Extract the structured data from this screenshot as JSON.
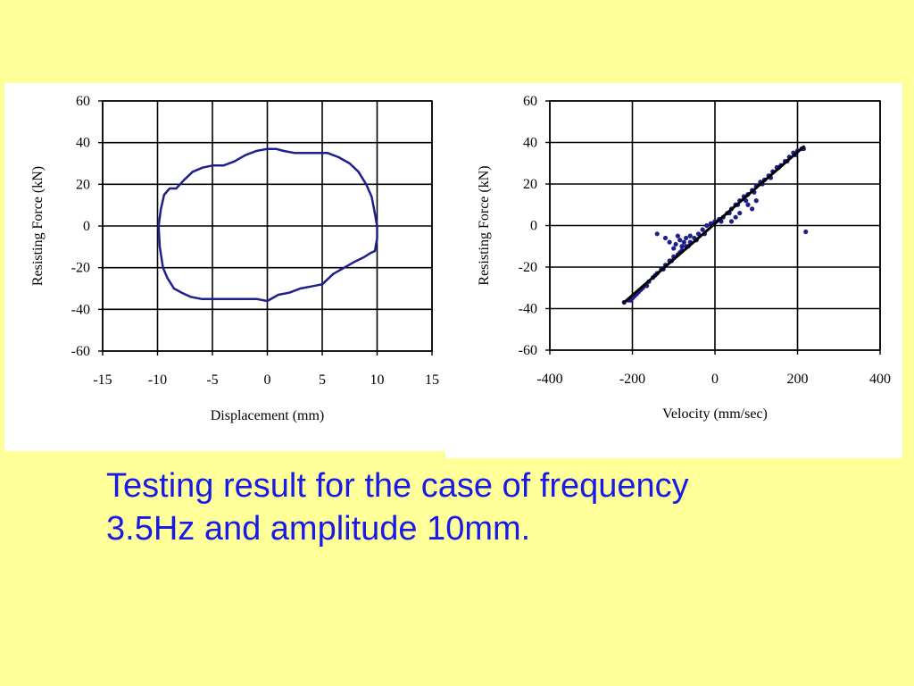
{
  "caption": {
    "line1": "Testing result for the case of frequency",
    "line2": "3.5Hz and amplitude 10mm."
  },
  "colors": {
    "background": "#ffff99",
    "caption": "#1a1ae6",
    "data_series": "#1f1f8c",
    "fit_line": "#000000"
  },
  "chart_data": [
    {
      "type": "line",
      "xlabel": "Displacement (mm)",
      "ylabel": "Resisting Force (kN)",
      "xlim": [
        -15,
        15
      ],
      "ylim": [
        -60,
        60
      ],
      "xticks": [
        -15,
        -10,
        -5,
        0,
        5,
        10,
        15
      ],
      "yticks": [
        -60,
        -40,
        -20,
        0,
        20,
        40,
        60
      ],
      "grid": true,
      "legend": "none",
      "series": [
        {
          "x": [
            -9.9,
            -9.7,
            -9.4,
            -8.9,
            -8.3,
            -7.6,
            -6.8,
            -5.9,
            -5.0,
            -4.0,
            -3.0,
            -2.0,
            -1.0,
            0.0,
            0.8,
            1.5,
            2.5,
            3.5,
            4.5,
            5.5,
            6.5,
            7.5,
            8.3,
            9.0,
            9.5,
            9.8,
            10.0,
            10.0,
            9.8,
            9.4,
            8.8,
            8.0,
            7.0,
            6.0,
            5.0,
            4.0,
            3.0,
            2.0,
            1.0,
            0.0,
            -1.0,
            -2.0,
            -3.0,
            -4.0,
            -5.0,
            -6.0,
            -7.0,
            -7.8,
            -8.5,
            -9.1,
            -9.5,
            -9.8,
            -9.9
          ],
          "y": [
            0,
            8,
            15,
            18,
            18,
            22,
            26,
            28,
            29,
            29,
            31,
            34,
            36,
            37,
            37,
            36,
            35,
            35,
            35,
            35,
            33,
            30,
            26,
            20,
            14,
            6,
            0,
            -6,
            -12,
            -13,
            -15,
            -17,
            -20,
            -23,
            -28,
            -29,
            -30,
            -32,
            -33,
            -36,
            -35,
            -35,
            -35,
            -35,
            -35,
            -35,
            -34,
            -32,
            -30,
            -25,
            -20,
            -10,
            0
          ]
        }
      ]
    },
    {
      "type": "scatter",
      "xlabel": "Velocity (mm/sec)",
      "ylabel": "Resisting Force (kN)",
      "xlim": [
        -400,
        400
      ],
      "ylim": [
        -60,
        60
      ],
      "xticks": [
        -400,
        -200,
        0,
        200,
        400
      ],
      "yticks": [
        -60,
        -40,
        -20,
        0,
        20,
        40,
        60
      ],
      "grid": true,
      "legend": "none",
      "series": [
        {
          "x": [
            -220,
            -210,
            -200,
            -195,
            -190,
            -180,
            -175,
            -170,
            -160,
            -150,
            -140,
            -130,
            -120,
            -110,
            -100,
            -90,
            -80,
            -70,
            -60,
            -50,
            -40,
            -30,
            -20,
            -10,
            0,
            10,
            20,
            30,
            40,
            50,
            60,
            70,
            80,
            90,
            100,
            110,
            120,
            130,
            140,
            150,
            160,
            170,
            180,
            190,
            200,
            210,
            215,
            -205,
            -185,
            -165,
            -145,
            -125,
            -105,
            -85,
            -65,
            -45,
            -25,
            -5,
            15,
            35,
            55,
            75,
            95,
            115,
            135,
            155,
            175,
            195,
            -140,
            -120,
            -110,
            -100,
            -95,
            -90,
            -85,
            -80,
            -75,
            -70,
            -60,
            40,
            50,
            60,
            80,
            90,
            100,
            220
          ],
          "y": [
            -37,
            -36,
            -35,
            -34,
            -33,
            -31,
            -30,
            -29,
            -27,
            -25,
            -23,
            -21,
            -19,
            -17,
            -15,
            -14,
            -12,
            -10,
            -8,
            -6,
            -4,
            -2,
            0,
            1,
            2,
            3,
            4,
            6,
            8,
            10,
            12,
            14,
            15,
            17,
            19,
            21,
            22,
            24,
            26,
            28,
            29,
            31,
            33,
            35,
            36,
            37,
            37,
            -36,
            -32,
            -29,
            -24,
            -21,
            -17,
            -13,
            -10,
            -7,
            -4,
            1,
            2,
            6,
            10,
            12,
            16,
            20,
            23,
            28,
            31,
            34,
            -4,
            -6,
            -8,
            -11,
            -9,
            -5,
            -7,
            -10,
            -8,
            -6,
            -5,
            2,
            4,
            6,
            10,
            8,
            12,
            -3
          ]
        },
        {
          "name": "",
          "type": "line",
          "x": [
            -220,
            215
          ],
          "y": [
            -37,
            38
          ]
        }
      ]
    }
  ]
}
